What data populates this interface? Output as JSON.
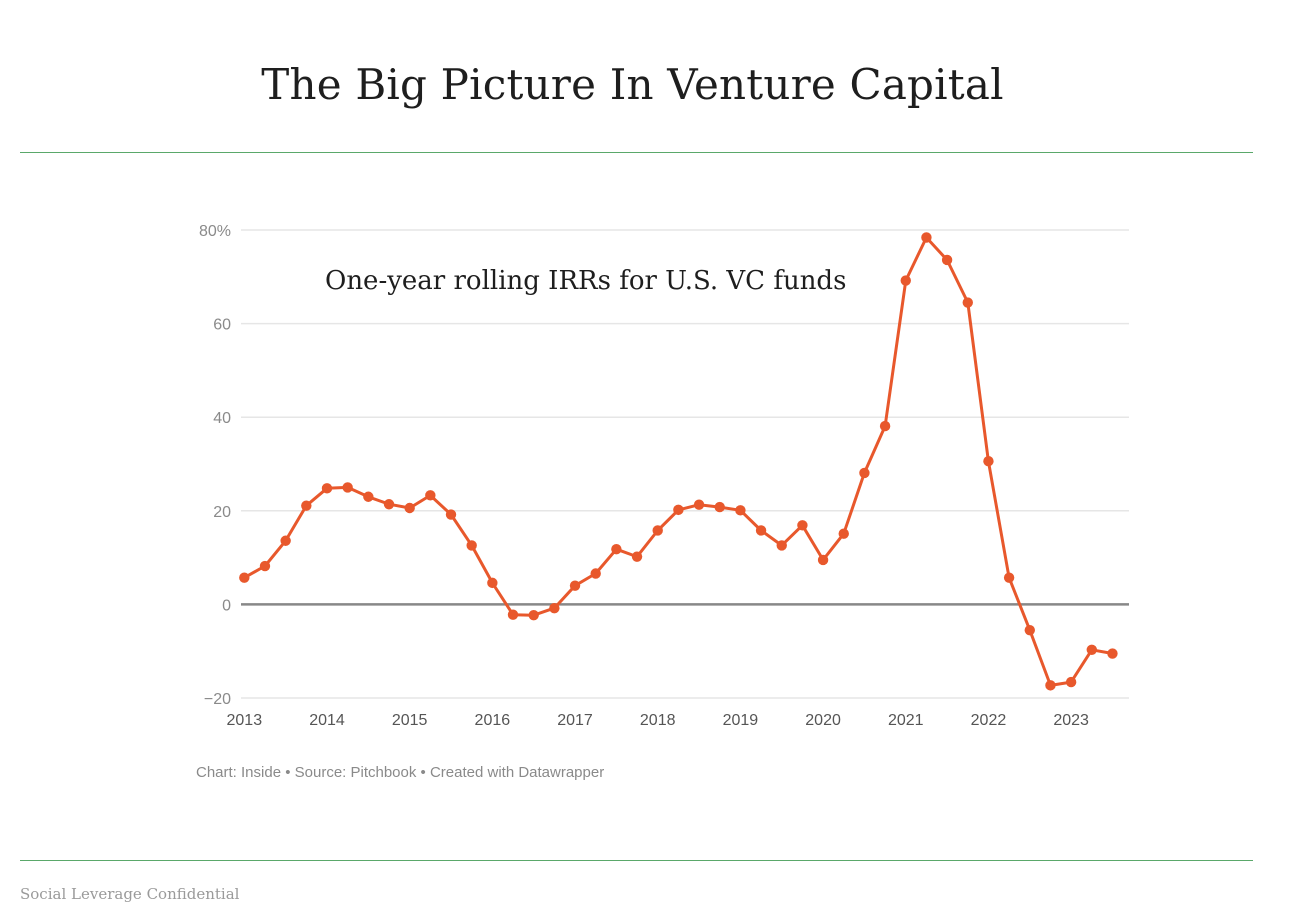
{
  "page": {
    "title": "The Big Picture In Venture Capital",
    "footer": "Social Leverage Confidential"
  },
  "colors": {
    "line": "#e8582c",
    "grid": "#e6e6e6",
    "zero_line": "#888888",
    "rule": "#5aa86a"
  },
  "chart_data": {
    "type": "line",
    "title": "One-year rolling IRRs for U.S. VC funds",
    "credit": "Chart: Inside • Source: Pitchbook • Created with Datawrapper",
    "xlabel": "",
    "ylabel": "",
    "ylim": [
      -20,
      80
    ],
    "xlim": [
      2012.96,
      2023.7
    ],
    "y_ticks": [
      {
        "value": 80,
        "label": "80%"
      },
      {
        "value": 60,
        "label": "60"
      },
      {
        "value": 40,
        "label": "40"
      },
      {
        "value": 20,
        "label": "20"
      },
      {
        "value": 0,
        "label": "0"
      },
      {
        "value": -20,
        "label": "−20"
      }
    ],
    "x_ticks": [
      {
        "value": 2013,
        "label": "2013"
      },
      {
        "value": 2014,
        "label": "2014"
      },
      {
        "value": 2015,
        "label": "2015"
      },
      {
        "value": 2016,
        "label": "2016"
      },
      {
        "value": 2017,
        "label": "2017"
      },
      {
        "value": 2018,
        "label": "2018"
      },
      {
        "value": 2019,
        "label": "2019"
      },
      {
        "value": 2020,
        "label": "2020"
      },
      {
        "value": 2021,
        "label": "2021"
      },
      {
        "value": 2022,
        "label": "2022"
      },
      {
        "value": 2023,
        "label": "2023"
      }
    ],
    "series": [
      {
        "name": "One-year rolling IRR",
        "x": [
          2013.0,
          2013.25,
          2013.5,
          2013.75,
          2014.0,
          2014.25,
          2014.5,
          2014.75,
          2015.0,
          2015.25,
          2015.5,
          2015.75,
          2016.0,
          2016.25,
          2016.5,
          2016.75,
          2017.0,
          2017.25,
          2017.5,
          2017.75,
          2018.0,
          2018.25,
          2018.5,
          2018.75,
          2019.0,
          2019.25,
          2019.5,
          2019.75,
          2020.0,
          2020.25,
          2020.5,
          2020.75,
          2021.0,
          2021.25,
          2021.5,
          2021.75,
          2022.0,
          2022.25,
          2022.5,
          2022.75,
          2023.0,
          2023.25,
          2023.5
        ],
        "values": [
          5.7,
          8.2,
          13.6,
          21.1,
          24.8,
          25.0,
          23.0,
          21.4,
          20.6,
          23.3,
          19.2,
          12.6,
          4.6,
          -2.2,
          -2.3,
          -0.8,
          4.0,
          6.6,
          11.8,
          10.2,
          15.8,
          20.2,
          21.3,
          20.8,
          20.1,
          15.8,
          12.6,
          16.9,
          9.5,
          15.1,
          28.1,
          38.1,
          69.2,
          78.4,
          73.6,
          64.5,
          30.6,
          5.7,
          -5.5,
          -17.3,
          -16.6,
          -9.7,
          -10.5
        ]
      }
    ]
  }
}
